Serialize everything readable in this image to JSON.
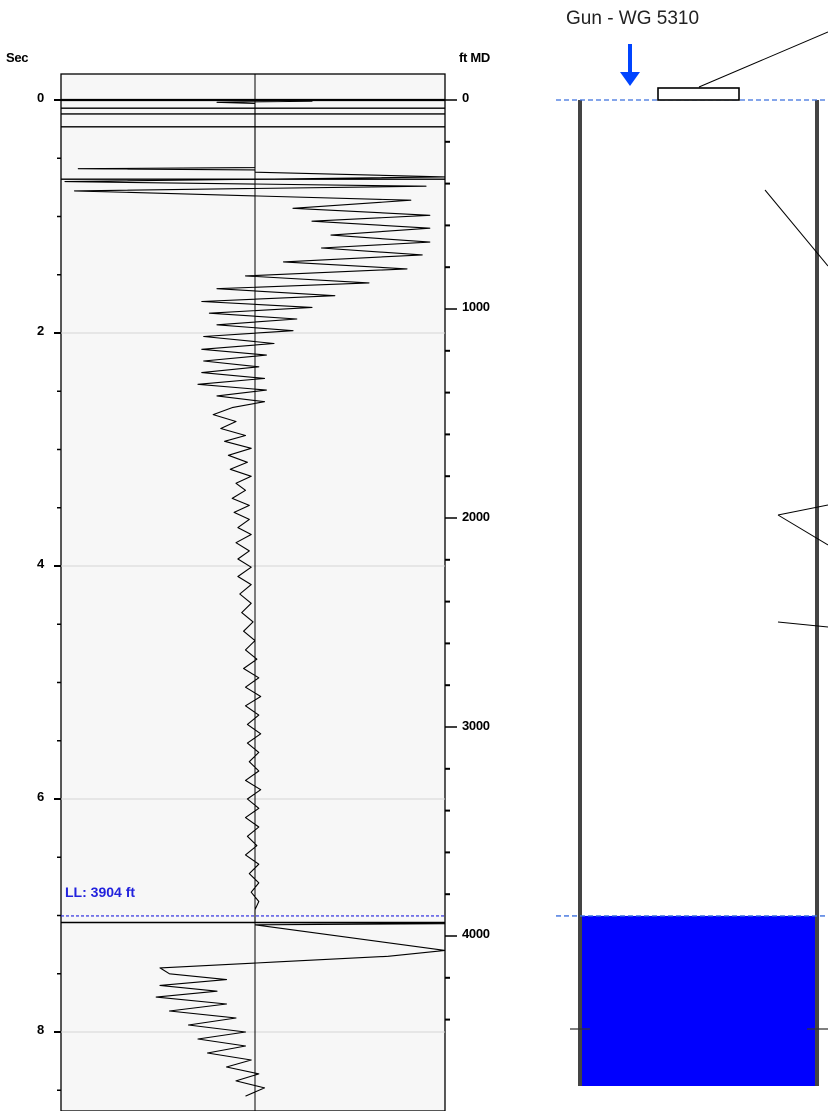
{
  "gun_label": "Gun - WG 5310",
  "liquid_level_label": "LL: 3904 ft",
  "chart_data": {
    "type": "line",
    "title": "",
    "left_axis": {
      "label": "Sec",
      "ticks": [
        "0",
        "2",
        "4",
        "6",
        "8"
      ],
      "ylim": [
        0,
        8.55
      ]
    },
    "right_axis": {
      "label": "ft MD",
      "ticks": [
        "0",
        "1000",
        "2000",
        "3000",
        "4000"
      ],
      "ylim": [
        0,
        4480
      ]
    },
    "liquid_level": {
      "depth_ft": 3904,
      "time_sec": 7.0
    },
    "series": [
      {
        "points": [
          [
            0.0,
            0
          ],
          [
            0.01,
            0.3
          ],
          [
            0.02,
            -0.2
          ],
          [
            0.03,
            0
          ],
          [
            0.08,
            0
          ],
          [
            0.15,
            0
          ],
          [
            0.2,
            0
          ],
          [
            0.25,
            0
          ],
          [
            0.3,
            0
          ],
          [
            0.58,
            0
          ],
          [
            0.59,
            -0.93
          ],
          [
            0.6,
            0
          ],
          [
            0.62,
            0
          ],
          [
            0.66,
            1.0
          ],
          [
            0.7,
            -1.0
          ],
          [
            0.74,
            0.9
          ],
          [
            0.78,
            -0.95
          ],
          [
            0.86,
            0.82
          ],
          [
            0.93,
            0.2
          ],
          [
            0.99,
            0.92
          ],
          [
            1.04,
            0.3
          ],
          [
            1.1,
            0.92
          ],
          [
            1.16,
            0.4
          ],
          [
            1.22,
            0.92
          ],
          [
            1.27,
            0.35
          ],
          [
            1.33,
            0.88
          ],
          [
            1.39,
            0.15
          ],
          [
            1.45,
            0.8
          ],
          [
            1.51,
            -0.05
          ],
          [
            1.57,
            0.6
          ],
          [
            1.62,
            -0.2
          ],
          [
            1.68,
            0.42
          ],
          [
            1.73,
            -0.28
          ],
          [
            1.78,
            0.3
          ],
          [
            1.83,
            -0.24
          ],
          [
            1.88,
            0.22
          ],
          [
            1.93,
            -0.2
          ],
          [
            1.98,
            0.2
          ],
          [
            2.03,
            -0.27
          ],
          [
            2.09,
            0.1
          ],
          [
            2.14,
            -0.28
          ],
          [
            2.19,
            0.06
          ],
          [
            2.24,
            -0.27
          ],
          [
            2.29,
            0.02
          ],
          [
            2.34,
            -0.28
          ],
          [
            2.39,
            0.05
          ],
          [
            2.44,
            -0.3
          ],
          [
            2.49,
            0.06
          ],
          [
            2.54,
            -0.2
          ],
          [
            2.59,
            0.05
          ],
          [
            2.64,
            -0.12
          ],
          [
            2.7,
            -0.22
          ],
          [
            2.76,
            -0.1
          ],
          [
            2.82,
            -0.18
          ],
          [
            2.88,
            -0.05
          ],
          [
            2.93,
            -0.16
          ],
          [
            2.99,
            -0.02
          ],
          [
            3.05,
            -0.14
          ],
          [
            3.11,
            -0.04
          ],
          [
            3.17,
            -0.13
          ],
          [
            3.23,
            -0.02
          ],
          [
            3.29,
            -0.1
          ],
          [
            3.35,
            -0.05
          ],
          [
            3.42,
            -0.12
          ],
          [
            3.48,
            -0.03
          ],
          [
            3.54,
            -0.11
          ],
          [
            3.6,
            -0.03
          ],
          [
            3.67,
            -0.09
          ],
          [
            3.73,
            -0.02
          ],
          [
            3.8,
            -0.1
          ],
          [
            3.87,
            -0.03
          ],
          [
            3.94,
            -0.09
          ],
          [
            4.01,
            -0.02
          ],
          [
            4.09,
            -0.09
          ],
          [
            4.16,
            -0.02
          ],
          [
            4.24,
            -0.08
          ],
          [
            4.32,
            -0.02
          ],
          [
            4.4,
            -0.07
          ],
          [
            4.48,
            -0.01
          ],
          [
            4.56,
            -0.06
          ],
          [
            4.64,
            0.0
          ],
          [
            4.72,
            -0.05
          ],
          [
            4.8,
            0.01
          ],
          [
            4.88,
            -0.06
          ],
          [
            4.96,
            0.02
          ],
          [
            5.04,
            -0.05
          ],
          [
            5.12,
            0.03
          ],
          [
            5.2,
            -0.05
          ],
          [
            5.28,
            0.02
          ],
          [
            5.36,
            -0.04
          ],
          [
            5.44,
            0.03
          ],
          [
            5.52,
            -0.04
          ],
          [
            5.6,
            0.02
          ],
          [
            5.68,
            -0.03
          ],
          [
            5.76,
            0.02
          ],
          [
            5.84,
            -0.05
          ],
          [
            5.92,
            0.03
          ],
          [
            6.0,
            -0.04
          ],
          [
            6.08,
            0.02
          ],
          [
            6.16,
            -0.05
          ],
          [
            6.24,
            0.02
          ],
          [
            6.32,
            -0.04
          ],
          [
            6.4,
            0.01
          ],
          [
            6.48,
            -0.05
          ],
          [
            6.56,
            0.02
          ],
          [
            6.64,
            -0.03
          ],
          [
            6.72,
            0.02
          ],
          [
            6.8,
            -0.02
          ],
          [
            6.88,
            0.02
          ],
          [
            6.95,
            0.0
          ],
          [
            7.0,
            0.0
          ],
          [
            7.06,
            0.0
          ],
          [
            7.07,
            1.0
          ],
          [
            7.08,
            0.0
          ],
          [
            7.3,
            1.0
          ],
          [
            7.35,
            0.7
          ],
          [
            7.4,
            0.1
          ],
          [
            7.45,
            -0.5
          ],
          [
            7.5,
            -0.45
          ],
          [
            7.55,
            -0.15
          ],
          [
            7.6,
            -0.5
          ],
          [
            7.65,
            -0.2
          ],
          [
            7.7,
            -0.52
          ],
          [
            7.76,
            -0.15
          ],
          [
            7.82,
            -0.45
          ],
          [
            7.88,
            -0.1
          ],
          [
            7.94,
            -0.35
          ],
          [
            8.0,
            -0.05
          ],
          [
            8.06,
            -0.3
          ],
          [
            8.12,
            -0.05
          ],
          [
            8.18,
            -0.25
          ],
          [
            8.24,
            -0.02
          ],
          [
            8.3,
            -0.15
          ],
          [
            8.36,
            0.02
          ],
          [
            8.42,
            -0.1
          ],
          [
            8.48,
            0.05
          ],
          [
            8.55,
            -0.05
          ]
        ]
      }
    ],
    "reflection_lines_sec": [
      0.0,
      0.07,
      0.12,
      0.23,
      0.68,
      7.06
    ],
    "wellbore": {
      "liquid_top_ft": 3904,
      "fluid_color": "#0000ff",
      "marker_color": "#0044ff"
    }
  }
}
